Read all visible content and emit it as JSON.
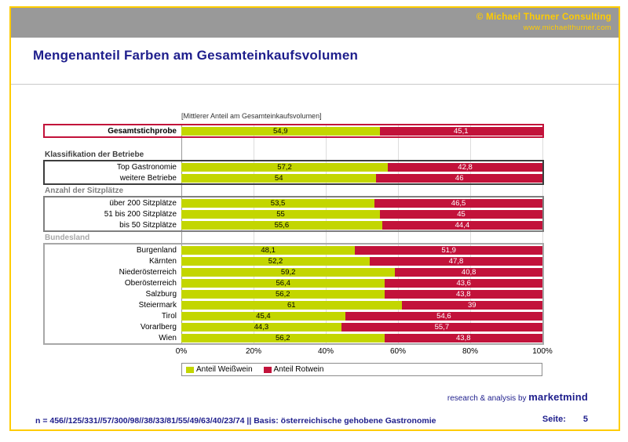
{
  "header": {
    "copyright": "© Michael Thurner Consulting",
    "website": "www.michaelthurner.com"
  },
  "title": "Mengenanteil Farben am Gesamteinkaufsvolumen",
  "chart_data": {
    "type": "bar",
    "orientation": "horizontal",
    "stacked": true,
    "note": "[Mittlerer Anteil am Gesamteinkaufsvolumen]",
    "xlim": [
      0,
      100
    ],
    "x_ticks": [
      "0%",
      "20%",
      "40%",
      "60%",
      "80%",
      "100%"
    ],
    "grid": true,
    "legend_position": "bottom",
    "series": [
      {
        "name": "Anteil Weißwein",
        "color": "#c3d600",
        "values": [
          54.9,
          57.2,
          54,
          53.5,
          55,
          55.6,
          48.1,
          52.2,
          59.2,
          56.4,
          56.2,
          61,
          45.4,
          44.3,
          56.2
        ]
      },
      {
        "name": "Anteil Rotwein",
        "color": "#c2123a",
        "values": [
          45.1,
          42.8,
          46,
          46.5,
          45,
          44.4,
          51.9,
          47.8,
          40.8,
          43.6,
          43.8,
          39,
          54.6,
          55.7,
          43.8
        ]
      }
    ],
    "categories": [
      "Gesamtstichprobe",
      "Top Gastronomie",
      "weitere Betriebe",
      "über 200 Sitzplätze",
      "51 bis 200 Sitzplätze",
      "bis 50 Sitzplätze",
      "Burgenland",
      "Kärnten",
      "Niederösterreich",
      "Oberösterreich",
      "Salzburg",
      "Steiermark",
      "Tirol",
      "Vorarlberg",
      "Wien"
    ],
    "groups": [
      {
        "header": null,
        "box_color": "#c2123a",
        "spacer_below": true,
        "rows": [
          {
            "label": "Gesamtstichprobe",
            "bold": true,
            "white": 54.9,
            "red": 45.1,
            "white_label": "54,9",
            "red_label": "45,1"
          }
        ]
      },
      {
        "header": {
          "text": "Klassifikation der Betriebe",
          "color": "#3d3d3d"
        },
        "box_color": "#3d3d3d",
        "spacer_below": false,
        "rows": [
          {
            "label": "Top Gastronomie",
            "bold": false,
            "white": 57.2,
            "red": 42.8,
            "white_label": "57,2",
            "red_label": "42,8"
          },
          {
            "label": "weitere Betriebe",
            "bold": false,
            "white": 54,
            "red": 46,
            "white_label": "54",
            "red_label": "46"
          }
        ]
      },
      {
        "header": {
          "text": "Anzahl der Sitzplätze",
          "color": "#7f7f7f"
        },
        "box_color": "#7f7f7f",
        "spacer_below": false,
        "rows": [
          {
            "label": "über 200 Sitzplätze",
            "bold": false,
            "white": 53.5,
            "red": 46.5,
            "white_label": "53,5",
            "red_label": "46,5"
          },
          {
            "label": "51 bis 200 Sitzplätze",
            "bold": false,
            "white": 55,
            "red": 45,
            "white_label": "55",
            "red_label": "45"
          },
          {
            "label": "bis 50 Sitzplätze",
            "bold": false,
            "white": 55.6,
            "red": 44.4,
            "white_label": "55,6",
            "red_label": "44,4"
          }
        ]
      },
      {
        "header": {
          "text": "Bundesland",
          "color": "#a8a8a8"
        },
        "box_color": "#a8a8a8",
        "spacer_below": false,
        "rows": [
          {
            "label": "Burgenland",
            "bold": false,
            "white": 48.1,
            "red": 51.9,
            "white_label": "48,1",
            "red_label": "51,9"
          },
          {
            "label": "Kärnten",
            "bold": false,
            "white": 52.2,
            "red": 47.8,
            "white_label": "52,2",
            "red_label": "47,8"
          },
          {
            "label": "Niederösterreich",
            "bold": false,
            "white": 59.2,
            "red": 40.8,
            "white_label": "59,2",
            "red_label": "40,8"
          },
          {
            "label": "Oberösterreich",
            "bold": false,
            "white": 56.4,
            "red": 43.6,
            "white_label": "56,4",
            "red_label": "43,6"
          },
          {
            "label": "Salzburg",
            "bold": false,
            "white": 56.2,
            "red": 43.8,
            "white_label": "56,2",
            "red_label": "43,8"
          },
          {
            "label": "Steiermark",
            "bold": false,
            "white": 61,
            "red": 39,
            "white_label": "61",
            "red_label": "39"
          },
          {
            "label": "Tirol",
            "bold": false,
            "white": 45.4,
            "red": 54.6,
            "white_label": "45,4",
            "red_label": "54,6"
          },
          {
            "label": "Vorarlberg",
            "bold": false,
            "white": 44.3,
            "red": 55.7,
            "white_label": "44,3",
            "red_label": "55,7"
          },
          {
            "label": "Wien",
            "bold": false,
            "white": 56.2,
            "red": 43.8,
            "white_label": "56,2",
            "red_label": "43,8"
          }
        ]
      }
    ]
  },
  "colors": {
    "white_wine": "#c3d600",
    "red_wine": "#c2123a",
    "gold_border": "#ffcc00",
    "band_gray": "#999999",
    "brand_blue": "#1e1e8c"
  },
  "footer": {
    "research_prefix": "research & analysis by ",
    "research_brand": "marketmind",
    "note": "n = 456//125/331//57/300/98//38/33/81/55/49/63/40/23/74 || Basis: österreichische gehobene Gastronomie",
    "page_label": "Seite:",
    "page_number": "5"
  }
}
